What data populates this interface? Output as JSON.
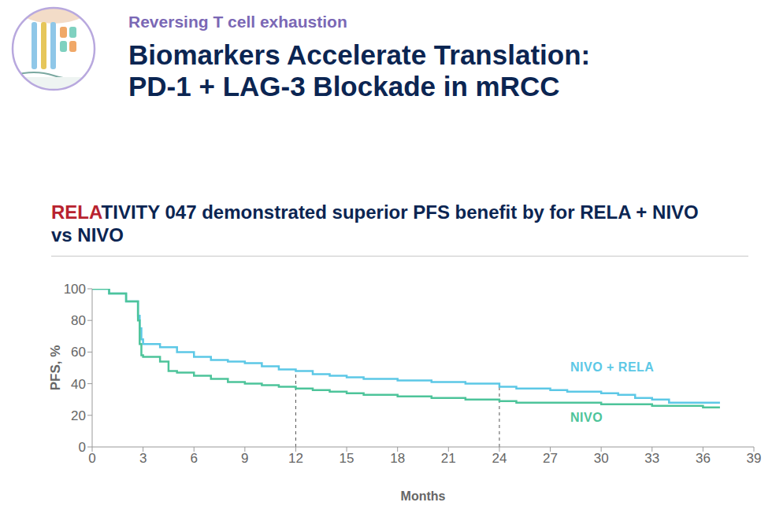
{
  "header": {
    "section": "Reversing T cell exhaustion",
    "title": [
      "Biomarkers Accelerate Translation:",
      "PD-1 + LAG-3 Blockade in mRCC"
    ]
  },
  "chart_data": {
    "type": "line",
    "title": "RELATIVITY 047 demonstrated superior PFS benefit by for RELA + NIVO vs NIVO",
    "x_label": "Months",
    "y_label": "PFS, %",
    "xlim": [
      0,
      39
    ],
    "xticks": [
      0,
      3,
      6,
      9,
      12,
      15,
      18,
      21,
      24,
      27,
      30,
      33,
      36,
      39
    ],
    "ylim": [
      0,
      100
    ],
    "yticks": [
      0,
      20,
      40,
      60,
      80,
      100
    ],
    "grid": false,
    "line_style": "step",
    "reference_lines": [
      12,
      24
    ],
    "series": [
      {
        "name": "NIVO + RELA",
        "color": "#5cc8e6",
        "x": [
          0,
          1,
          2,
          2.7,
          2.8,
          2.9,
          3,
          4,
          5,
          6,
          7,
          8,
          9,
          10,
          11,
          12,
          13,
          14,
          15,
          16,
          18,
          20,
          22,
          24,
          25,
          27,
          28,
          30,
          31,
          32,
          33,
          34,
          36,
          37
        ],
        "values": [
          100,
          97,
          92,
          83,
          75,
          68,
          65,
          63,
          60,
          57,
          55,
          54,
          53,
          51,
          49,
          48,
          46,
          45,
          44,
          43,
          42,
          41,
          40,
          38,
          37,
          36,
          35,
          34,
          33,
          31,
          30,
          28,
          28,
          28
        ]
      },
      {
        "name": "NIVO",
        "color": "#4dc49a",
        "x": [
          0,
          1,
          2,
          2.7,
          2.8,
          2.9,
          3,
          4,
          4.5,
          5,
          6,
          7,
          8,
          9,
          10,
          11,
          12,
          13,
          14,
          15,
          16,
          18,
          20,
          22,
          24,
          25,
          27,
          30,
          33,
          36,
          37
        ],
        "values": [
          100,
          97,
          92,
          80,
          65,
          58,
          57,
          54,
          48,
          47,
          45,
          43,
          41,
          40,
          39,
          38,
          37,
          36,
          35,
          34,
          33,
          32,
          31,
          30,
          29,
          28,
          28,
          27,
          26,
          25,
          25
        ]
      }
    ]
  }
}
